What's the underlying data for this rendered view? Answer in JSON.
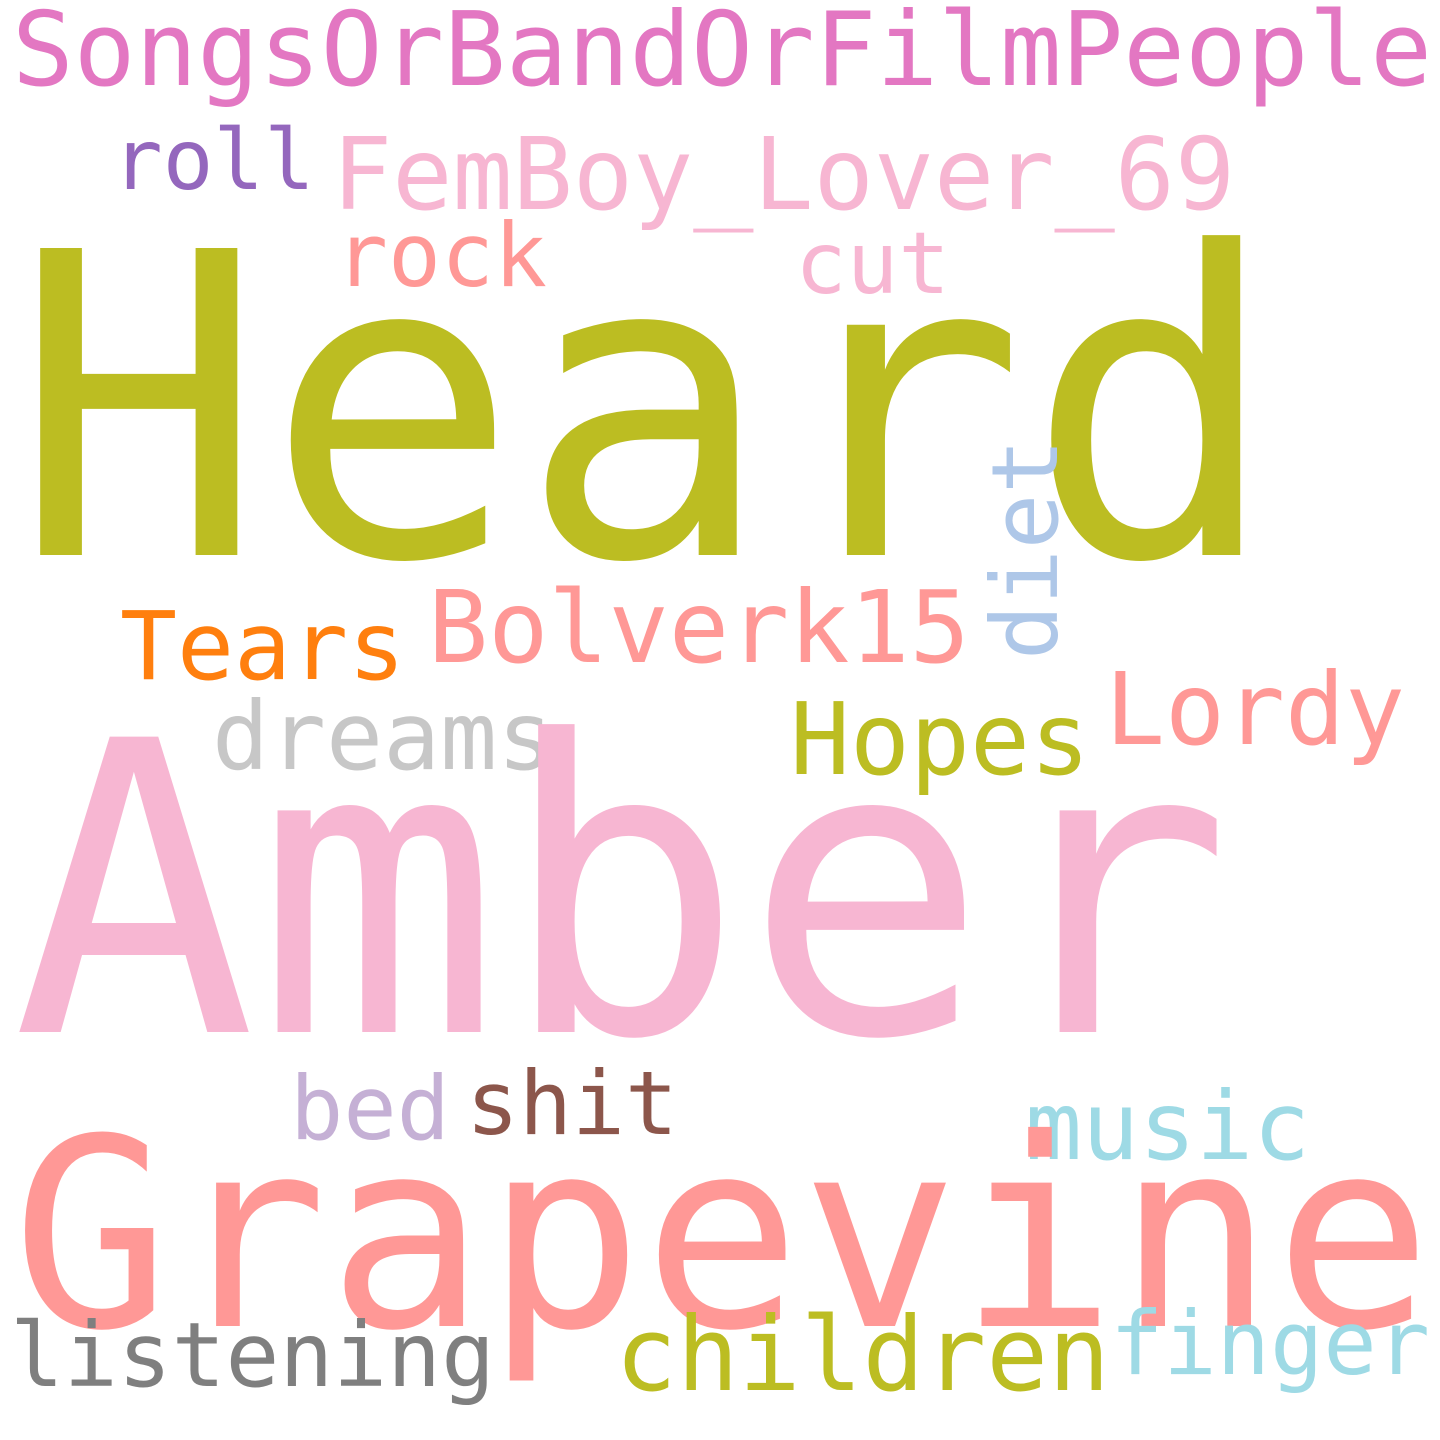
{
  "words": [
    {
      "text": "SongsOrBandOrFilmPeople",
      "color": "#e377c2",
      "orientation": "horizontal"
    },
    {
      "text": "roll",
      "color": "#9467bd",
      "orientation": "horizontal"
    },
    {
      "text": "FemBoy_Lover_69",
      "color": "#f7b6d2",
      "orientation": "horizontal"
    },
    {
      "text": "rock",
      "color": "#ff9896",
      "orientation": "horizontal"
    },
    {
      "text": "cut",
      "color": "#f7b6d2",
      "orientation": "horizontal"
    },
    {
      "text": "Heard",
      "color": "#bcbd22",
      "orientation": "horizontal"
    },
    {
      "text": "diet",
      "color": "#aec7e8",
      "orientation": "vertical"
    },
    {
      "text": "Tears",
      "color": "#ff7f0e",
      "orientation": "horizontal"
    },
    {
      "text": "Bolverk15",
      "color": "#ff9896",
      "orientation": "horizontal"
    },
    {
      "text": "Lordy",
      "color": "#ff9896",
      "orientation": "horizontal"
    },
    {
      "text": "Hopes",
      "color": "#bcbd22",
      "orientation": "horizontal"
    },
    {
      "text": "dreams",
      "color": "#c7c7c7",
      "orientation": "horizontal"
    },
    {
      "text": "Amber",
      "color": "#f7b6d2",
      "orientation": "horizontal"
    },
    {
      "text": "bed",
      "color": "#c5b0d5",
      "orientation": "horizontal"
    },
    {
      "text": "shit",
      "color": "#8c564b",
      "orientation": "horizontal"
    },
    {
      "text": "music",
      "color": "#9edae5",
      "orientation": "horizontal"
    },
    {
      "text": "Grapevine",
      "color": "#ff9896",
      "orientation": "horizontal"
    },
    {
      "text": "listening",
      "color": "#7f7f7f",
      "orientation": "horizontal"
    },
    {
      "text": "children",
      "color": "#bcbd22",
      "orientation": "horizontal"
    },
    {
      "text": "finger",
      "color": "#9edae5",
      "orientation": "horizontal"
    }
  ]
}
